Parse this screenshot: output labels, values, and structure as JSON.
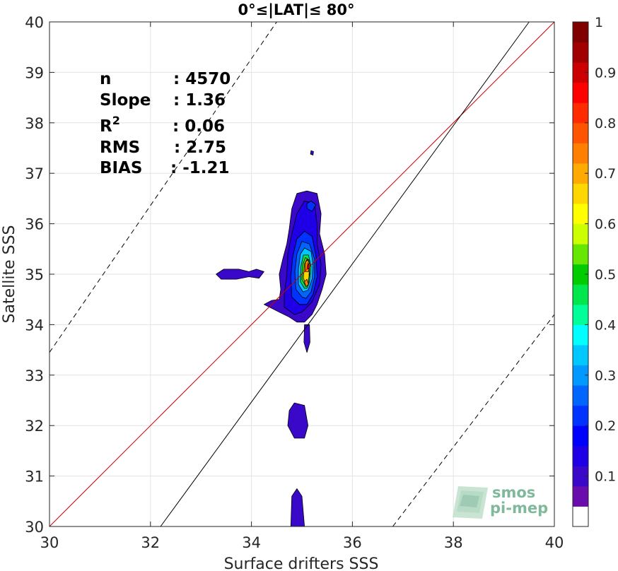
{
  "chart_data": {
    "type": "heatmap",
    "subtype": "filled-contour density",
    "title": "0°≤|LAT|≤ 80°",
    "xlabel": "Surface drifters SSS",
    "ylabel": "Satellite SSS",
    "xlim": [
      30,
      40
    ],
    "ylim": [
      30,
      40
    ],
    "x_ticks": [
      "30",
      "32",
      "34",
      "36",
      "38",
      "40"
    ],
    "y_ticks": [
      "30",
      "31",
      "32",
      "33",
      "34",
      "35",
      "36",
      "37",
      "38",
      "39",
      "40"
    ],
    "grid": true,
    "stats": [
      {
        "label": "n",
        "value": ": 4570"
      },
      {
        "label": "Slope",
        "value": ": 1.36"
      },
      {
        "label": "R",
        "sup": "2",
        "value": ": 0.06"
      },
      {
        "label": "RMS",
        "value": ": 2.75"
      },
      {
        "label": "BIAS",
        "value": ": -1.21"
      }
    ],
    "lines": [
      {
        "name": "1:1",
        "style": "solid",
        "color": "#cc0000",
        "points": [
          [
            30,
            30
          ],
          [
            40,
            40
          ]
        ]
      },
      {
        "name": "fit",
        "style": "solid",
        "color": "#000000",
        "points": [
          [
            32.2,
            30
          ],
          [
            39.5,
            40
          ]
        ]
      },
      {
        "name": "upper-bound",
        "style": "dashed",
        "color": "#000000",
        "points": [
          [
            30,
            33.45
          ],
          [
            34.5,
            40
          ]
        ]
      },
      {
        "name": "lower-bound",
        "style": "dashed",
        "color": "#000000",
        "points": [
          [
            36.8,
            30
          ],
          [
            40,
            34.2
          ]
        ]
      }
    ],
    "density_blobs": [
      {
        "level": 0.1,
        "points": [
          [
            34.9,
            34.05
          ],
          [
            34.75,
            34.15
          ],
          [
            34.55,
            34.25
          ],
          [
            34.35,
            34.35
          ],
          [
            34.25,
            34.4
          ],
          [
            34.4,
            34.48
          ],
          [
            34.55,
            34.5
          ],
          [
            34.58,
            34.7
          ],
          [
            34.55,
            35.0
          ],
          [
            34.62,
            35.3
          ],
          [
            34.7,
            35.6
          ],
          [
            34.75,
            35.9
          ],
          [
            34.8,
            36.3
          ],
          [
            34.9,
            36.6
          ],
          [
            35.1,
            36.65
          ],
          [
            35.3,
            36.6
          ],
          [
            35.38,
            36.2
          ],
          [
            35.35,
            35.8
          ],
          [
            35.45,
            35.4
          ],
          [
            35.48,
            35.0
          ],
          [
            35.4,
            34.7
          ],
          [
            35.3,
            34.4
          ],
          [
            35.2,
            34.2
          ],
          [
            35.05,
            34.05
          ]
        ]
      },
      {
        "level": 0.1,
        "points": [
          [
            33.3,
            35.0
          ],
          [
            33.45,
            35.1
          ],
          [
            33.75,
            35.1
          ],
          [
            33.95,
            35.05
          ],
          [
            34.1,
            35.1
          ],
          [
            34.25,
            35.05
          ],
          [
            34.15,
            34.92
          ],
          [
            33.95,
            34.95
          ],
          [
            33.7,
            34.9
          ],
          [
            33.4,
            34.9
          ]
        ]
      },
      {
        "level": 0.1,
        "points": [
          [
            35.05,
            34.0
          ],
          [
            35.15,
            34.0
          ],
          [
            35.16,
            33.65
          ],
          [
            35.1,
            33.45
          ],
          [
            35.04,
            33.65
          ]
        ]
      },
      {
        "level": 0.1,
        "points": [
          [
            34.75,
            32.3
          ],
          [
            34.85,
            32.45
          ],
          [
            35.05,
            32.4
          ],
          [
            35.12,
            32.0
          ],
          [
            35.05,
            31.75
          ],
          [
            34.85,
            31.75
          ],
          [
            34.72,
            32.0
          ]
        ]
      },
      {
        "level": 0.1,
        "points": [
          [
            34.78,
            30.0
          ],
          [
            34.8,
            30.6
          ],
          [
            34.9,
            30.75
          ],
          [
            35.0,
            30.6
          ],
          [
            35.05,
            30.0
          ]
        ]
      },
      {
        "level": 0.1,
        "points": [
          [
            35.18,
            37.45
          ],
          [
            35.23,
            37.43
          ],
          [
            35.22,
            37.36
          ],
          [
            35.17,
            37.38
          ]
        ]
      },
      {
        "level": 0.15,
        "points": [
          [
            34.85,
            34.2
          ],
          [
            34.65,
            34.35
          ],
          [
            34.65,
            34.6
          ],
          [
            34.7,
            35.0
          ],
          [
            34.72,
            35.4
          ],
          [
            34.8,
            35.8
          ],
          [
            34.9,
            36.2
          ],
          [
            35.05,
            36.45
          ],
          [
            35.25,
            36.4
          ],
          [
            35.3,
            36.0
          ],
          [
            35.3,
            35.6
          ],
          [
            35.38,
            35.2
          ],
          [
            35.35,
            34.8
          ],
          [
            35.2,
            34.45
          ],
          [
            35.0,
            34.25
          ]
        ]
      },
      {
        "level": 0.2,
        "points": [
          [
            34.95,
            34.4
          ],
          [
            34.8,
            34.55
          ],
          [
            34.78,
            34.95
          ],
          [
            34.82,
            35.35
          ],
          [
            34.9,
            35.7
          ],
          [
            35.05,
            35.85
          ],
          [
            35.2,
            35.75
          ],
          [
            35.28,
            35.35
          ],
          [
            35.3,
            34.95
          ],
          [
            35.22,
            34.6
          ],
          [
            35.1,
            34.4
          ]
        ]
      },
      {
        "level": 0.2,
        "points": [
          [
            35.1,
            36.4
          ],
          [
            35.18,
            36.45
          ],
          [
            35.28,
            36.38
          ],
          [
            35.2,
            36.25
          ],
          [
            35.1,
            36.3
          ]
        ]
      },
      {
        "level": 0.27,
        "points": [
          [
            35.0,
            34.55
          ],
          [
            34.88,
            34.7
          ],
          [
            34.86,
            35.05
          ],
          [
            34.9,
            35.4
          ],
          [
            35.0,
            35.65
          ],
          [
            35.15,
            35.6
          ],
          [
            35.25,
            35.3
          ],
          [
            35.25,
            34.95
          ],
          [
            35.18,
            34.65
          ],
          [
            35.08,
            34.52
          ]
        ]
      },
      {
        "level": 0.35,
        "points": [
          [
            35.02,
            34.65
          ],
          [
            34.93,
            34.8
          ],
          [
            34.93,
            35.1
          ],
          [
            34.97,
            35.4
          ],
          [
            35.05,
            35.52
          ],
          [
            35.18,
            35.45
          ],
          [
            35.22,
            35.2
          ],
          [
            35.2,
            34.9
          ],
          [
            35.12,
            34.68
          ]
        ]
      },
      {
        "level": 0.45,
        "points": [
          [
            35.05,
            34.72
          ],
          [
            34.97,
            34.85
          ],
          [
            34.98,
            35.15
          ],
          [
            35.03,
            35.38
          ],
          [
            35.13,
            35.38
          ],
          [
            35.18,
            35.15
          ],
          [
            35.15,
            34.85
          ],
          [
            35.1,
            34.72
          ]
        ]
      },
      {
        "level": 0.55,
        "points": [
          [
            35.07,
            34.77
          ],
          [
            35.0,
            34.9
          ],
          [
            35.02,
            35.2
          ],
          [
            35.07,
            35.33
          ],
          [
            35.14,
            35.28
          ],
          [
            35.15,
            35.0
          ],
          [
            35.12,
            34.8
          ]
        ]
      },
      {
        "level": 0.65,
        "points": [
          [
            35.09,
            34.78
          ],
          [
            35.03,
            34.92
          ],
          [
            35.05,
            35.2
          ],
          [
            35.1,
            35.3
          ],
          [
            35.15,
            35.22
          ],
          [
            35.14,
            34.95
          ],
          [
            35.12,
            34.8
          ]
        ]
      },
      {
        "level": 0.75,
        "points": [
          [
            35.06,
            35.05
          ],
          [
            35.07,
            35.25
          ],
          [
            35.12,
            35.28
          ],
          [
            35.16,
            35.18
          ],
          [
            35.13,
            35.05
          ]
        ]
      },
      {
        "level": 0.75,
        "points": [
          [
            35.08,
            34.75
          ],
          [
            35.05,
            34.85
          ],
          [
            35.1,
            34.9
          ],
          [
            35.13,
            34.8
          ]
        ]
      },
      {
        "level": 0.85,
        "points": [
          [
            35.1,
            35.12
          ],
          [
            35.12,
            35.22
          ],
          [
            35.14,
            35.18
          ],
          [
            35.13,
            35.1
          ]
        ]
      }
    ],
    "colorbar": {
      "min": 0,
      "max": 1,
      "tick_labels": [
        "0.1",
        "0.2",
        "0.3",
        "0.4",
        "0.5",
        "0.6",
        "0.7",
        "0.8",
        "0.9",
        "1"
      ],
      "tick_values": [
        0.1,
        0.2,
        0.3,
        0.4,
        0.5,
        0.6,
        0.7,
        0.8,
        0.9,
        1.0
      ],
      "colors": [
        "#ffffff",
        "#6a0dad",
        "#3a08c8",
        "#1f00e6",
        "#0000ff",
        "#0033ff",
        "#0066ff",
        "#0099ff",
        "#00c8ff",
        "#00ffff",
        "#00ff99",
        "#00e64d",
        "#00cc00",
        "#66e600",
        "#ccff00",
        "#ffff00",
        "#ffd700",
        "#ffaa00",
        "#ff8000",
        "#ff5500",
        "#ff2a00",
        "#ff0000",
        "#cc0000",
        "#a00000",
        "#800000"
      ]
    }
  },
  "logo": {
    "line1": "smos",
    "line2": "pi-mep"
  }
}
